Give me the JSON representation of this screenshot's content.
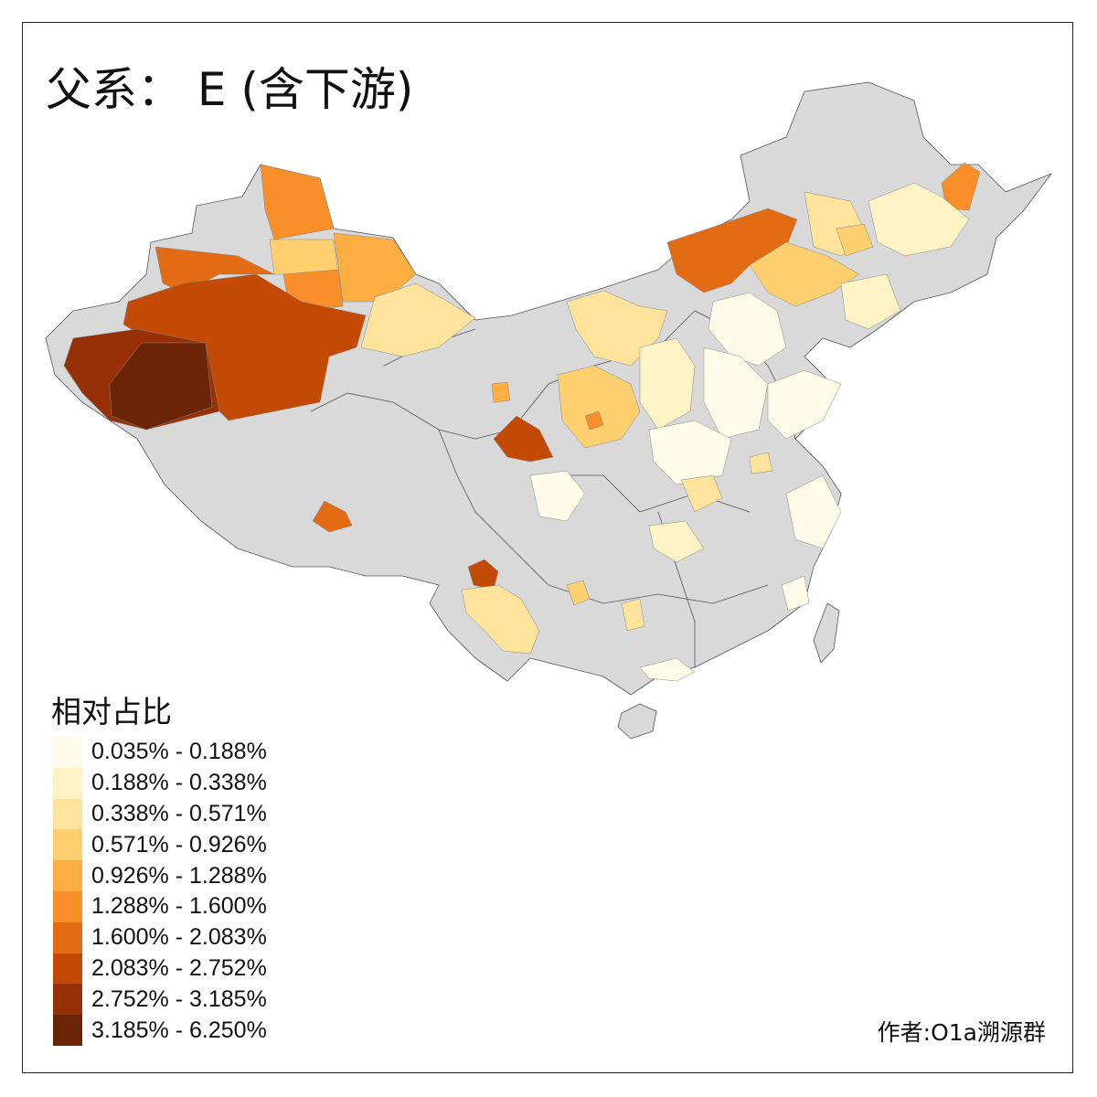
{
  "title": "父系：  E (含下游)",
  "legend": {
    "title": "相对占比",
    "classes": [
      {
        "label": "0.035% - 0.188%",
        "color": "#fffbe8"
      },
      {
        "label": "0.188% - 0.338%",
        "color": "#fff2c4"
      },
      {
        "label": "0.338% - 0.571%",
        "color": "#fee39c"
      },
      {
        "label": "0.571% - 0.926%",
        "color": "#fecf6e"
      },
      {
        "label": "0.926% - 1.288%",
        "color": "#fdae42"
      },
      {
        "label": "1.288% - 1.600%",
        "color": "#f88f2a"
      },
      {
        "label": "1.600% - 2.083%",
        "color": "#e26b14"
      },
      {
        "label": "2.083% - 2.752%",
        "color": "#c24a05"
      },
      {
        "label": "2.752% - 3.185%",
        "color": "#973006"
      },
      {
        "label": "3.185% - 6.250%",
        "color": "#6b2405"
      }
    ]
  },
  "no_data_color": "#d9d9d9",
  "credit": "作者:O1a溯源群"
}
